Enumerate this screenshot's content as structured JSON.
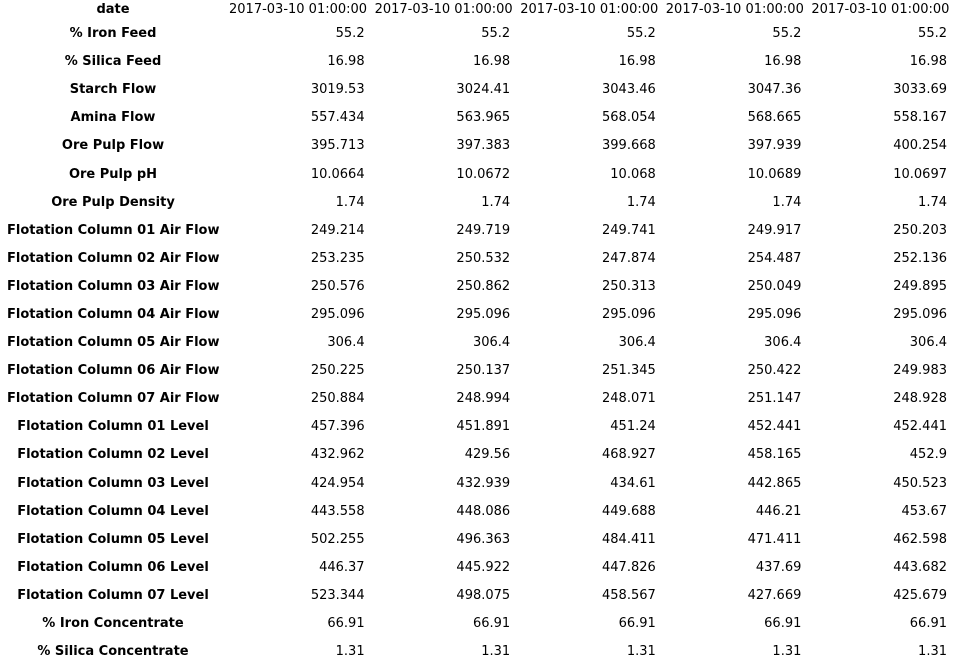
{
  "header": {
    "label": "date",
    "columns": [
      "2017-03-10 01:00:00",
      "2017-03-10 01:00:00",
      "2017-03-10 01:00:00",
      "2017-03-10 01:00:00",
      "2017-03-10 01:00:00"
    ]
  },
  "rows": [
    {
      "label": "% Iron Feed",
      "values": [
        "55.2",
        "55.2",
        "55.2",
        "55.2",
        "55.2"
      ]
    },
    {
      "label": "% Silica Feed",
      "values": [
        "16.98",
        "16.98",
        "16.98",
        "16.98",
        "16.98"
      ]
    },
    {
      "label": "Starch Flow",
      "values": [
        "3019.53",
        "3024.41",
        "3043.46",
        "3047.36",
        "3033.69"
      ]
    },
    {
      "label": "Amina Flow",
      "values": [
        "557.434",
        "563.965",
        "568.054",
        "568.665",
        "558.167"
      ]
    },
    {
      "label": "Ore Pulp Flow",
      "values": [
        "395.713",
        "397.383",
        "399.668",
        "397.939",
        "400.254"
      ]
    },
    {
      "label": "Ore Pulp pH",
      "values": [
        "10.0664",
        "10.0672",
        "10.068",
        "10.0689",
        "10.0697"
      ]
    },
    {
      "label": "Ore Pulp Density",
      "values": [
        "1.74",
        "1.74",
        "1.74",
        "1.74",
        "1.74"
      ]
    },
    {
      "label": "Flotation Column 01 Air Flow",
      "values": [
        "249.214",
        "249.719",
        "249.741",
        "249.917",
        "250.203"
      ]
    },
    {
      "label": "Flotation Column 02 Air Flow",
      "values": [
        "253.235",
        "250.532",
        "247.874",
        "254.487",
        "252.136"
      ]
    },
    {
      "label": "Flotation Column 03 Air Flow",
      "values": [
        "250.576",
        "250.862",
        "250.313",
        "250.049",
        "249.895"
      ]
    },
    {
      "label": "Flotation Column 04 Air Flow",
      "values": [
        "295.096",
        "295.096",
        "295.096",
        "295.096",
        "295.096"
      ]
    },
    {
      "label": "Flotation Column 05 Air Flow",
      "values": [
        "306.4",
        "306.4",
        "306.4",
        "306.4",
        "306.4"
      ]
    },
    {
      "label": "Flotation Column 06 Air Flow",
      "values": [
        "250.225",
        "250.137",
        "251.345",
        "250.422",
        "249.983"
      ]
    },
    {
      "label": "Flotation Column 07 Air Flow",
      "values": [
        "250.884",
        "248.994",
        "248.071",
        "251.147",
        "248.928"
      ]
    },
    {
      "label": "Flotation Column 01 Level",
      "values": [
        "457.396",
        "451.891",
        "451.24",
        "452.441",
        "452.441"
      ]
    },
    {
      "label": "Flotation Column 02 Level",
      "values": [
        "432.962",
        "429.56",
        "468.927",
        "458.165",
        "452.9"
      ]
    },
    {
      "label": "Flotation Column 03 Level",
      "values": [
        "424.954",
        "432.939",
        "434.61",
        "442.865",
        "450.523"
      ]
    },
    {
      "label": "Flotation Column 04 Level",
      "values": [
        "443.558",
        "448.086",
        "449.688",
        "446.21",
        "453.67"
      ]
    },
    {
      "label": "Flotation Column 05 Level",
      "values": [
        "502.255",
        "496.363",
        "484.411",
        "471.411",
        "462.598"
      ]
    },
    {
      "label": "Flotation Column 06 Level",
      "values": [
        "446.37",
        "445.922",
        "447.826",
        "437.69",
        "443.682"
      ]
    },
    {
      "label": "Flotation Column 07 Level",
      "values": [
        "523.344",
        "498.075",
        "458.567",
        "427.669",
        "425.679"
      ]
    },
    {
      "label": "% Iron Concentrate",
      "values": [
        "66.91",
        "66.91",
        "66.91",
        "66.91",
        "66.91"
      ]
    },
    {
      "label": "% Silica Concentrate",
      "values": [
        "1.31",
        "1.31",
        "1.31",
        "1.31",
        "1.31"
      ]
    }
  ]
}
